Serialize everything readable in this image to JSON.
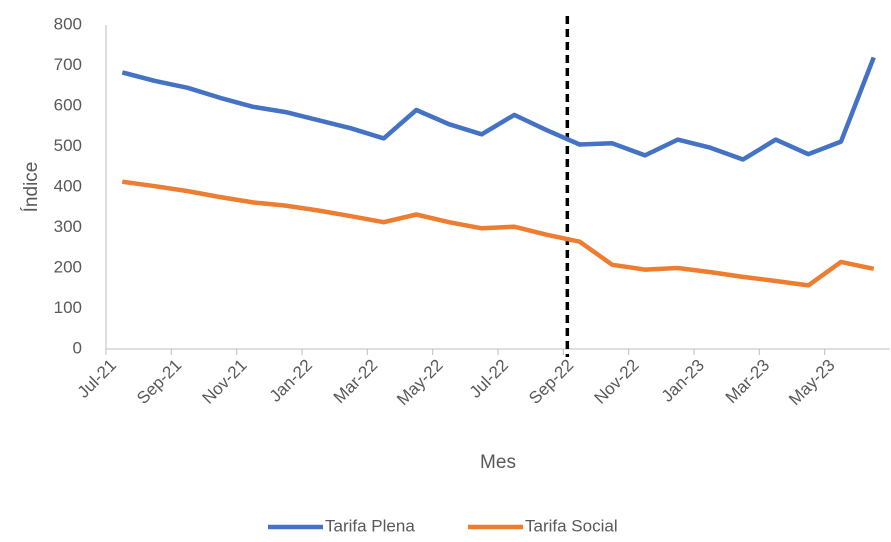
{
  "chart_data": {
    "type": "line",
    "x_label": "Mes",
    "y_label": "Índice",
    "categories": [
      "Jul-21",
      null,
      "Sep-21",
      null,
      "Nov-21",
      null,
      "Jan-22",
      null,
      "Mar-22",
      null,
      "May-22",
      null,
      "Jul-22",
      null,
      "Sep-22",
      null,
      "Nov-22",
      null,
      "Jan-23",
      null,
      "Mar-23",
      null,
      "May-23",
      null
    ],
    "series": [
      {
        "name": "Tarifa Plena",
        "color": "#4472c4",
        "values": [
          683,
          662,
          645,
          620,
          598,
          585,
          565,
          545,
          520,
          590,
          555,
          530,
          578,
          540,
          505,
          508,
          478,
          517,
          497,
          468,
          517,
          481,
          512,
          720
        ]
      },
      {
        "name": "Tarifa Social",
        "color": "#ed7d31",
        "values": [
          413,
          402,
          390,
          375,
          362,
          354,
          342,
          328,
          313,
          332,
          313,
          298,
          302,
          282,
          265,
          208,
          196,
          200,
          190,
          178,
          168,
          157,
          215,
          198
        ]
      }
    ],
    "ylim": [
      0,
      800
    ],
    "yticks": [
      0,
      100,
      200,
      300,
      400,
      500,
      600,
      700,
      800
    ],
    "legend": "bottom"
  }
}
